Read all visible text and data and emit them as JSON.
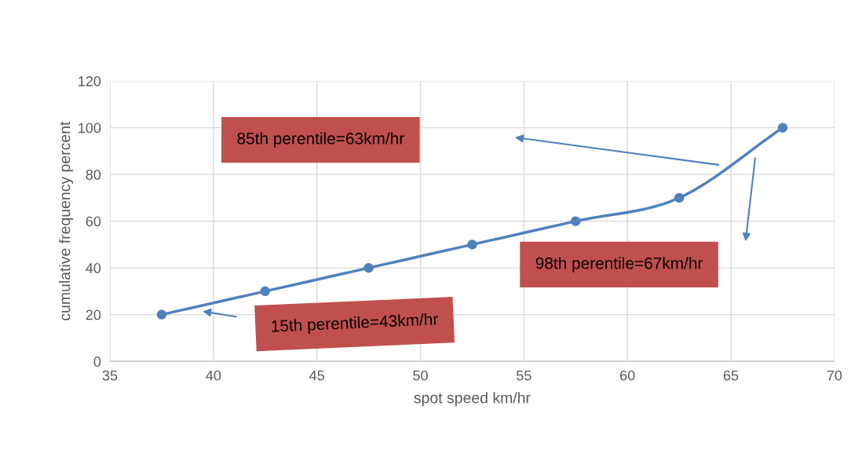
{
  "chart_data": {
    "type": "line",
    "xlabel": "spot speed km/hr",
    "ylabel": "cumulative frequency percent",
    "x": [
      37.5,
      42.5,
      47.5,
      52.5,
      57.5,
      62.5,
      67.5
    ],
    "series": [
      {
        "color": "#4f81bd",
        "values": [
          20,
          30,
          40,
          50,
          60,
          70,
          100
        ]
      }
    ],
    "xlim": [
      35,
      70
    ],
    "xticks": [
      35,
      40,
      45,
      50,
      55,
      60,
      65,
      70
    ],
    "ylim": [
      0,
      120
    ],
    "yticks": [
      0,
      20,
      40,
      60,
      80,
      100,
      120
    ],
    "grid": true,
    "marker": "circle",
    "line_style": "solid",
    "annotations": [
      "85th perentile=63km/hr",
      "98th perentile=67km/hr",
      "15th perentile=43km/hr"
    ]
  }
}
